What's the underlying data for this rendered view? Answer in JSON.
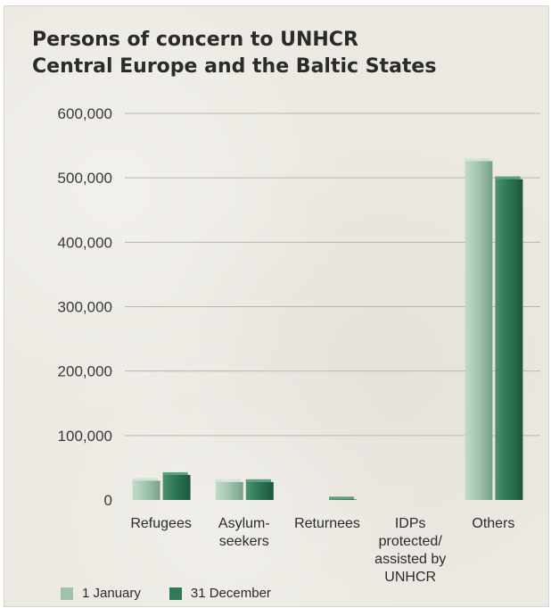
{
  "colors": {
    "series_1": "#9ec2ae",
    "series_2": "#2f7a58",
    "grid": "#b9b6ae",
    "background": "#ece9e2"
  },
  "chart_data": {
    "type": "bar",
    "title_lines": [
      "Persons of concern to UNHCR",
      "Central Europe and the Baltic States"
    ],
    "categories": [
      "Refugees",
      "Asylum-seekers",
      "Returnees",
      "IDPs protected/assisted by UNHCR",
      "Others"
    ],
    "category_label_lines": [
      [
        "Refugees"
      ],
      [
        "Asylum-",
        "seekers"
      ],
      [
        "Returnees"
      ],
      [
        "IDPs",
        "protected/",
        "assisted by",
        "UNHCR"
      ],
      [
        "Others"
      ]
    ],
    "series": [
      {
        "name": "1 January",
        "values": [
          34000,
          32000,
          0,
          0,
          530000
        ]
      },
      {
        "name": "31 December",
        "values": [
          43000,
          32000,
          5000,
          0,
          502000
        ]
      }
    ],
    "y_ticks": [
      "0",
      "100,000",
      "200,000",
      "300,000",
      "400,000",
      "500,000",
      "600,000"
    ],
    "y_tick_values": [
      0,
      100000,
      200000,
      300000,
      400000,
      500000,
      600000
    ],
    "ylim": [
      0,
      600000
    ],
    "grid": true,
    "legend_position": "bottom-left"
  }
}
